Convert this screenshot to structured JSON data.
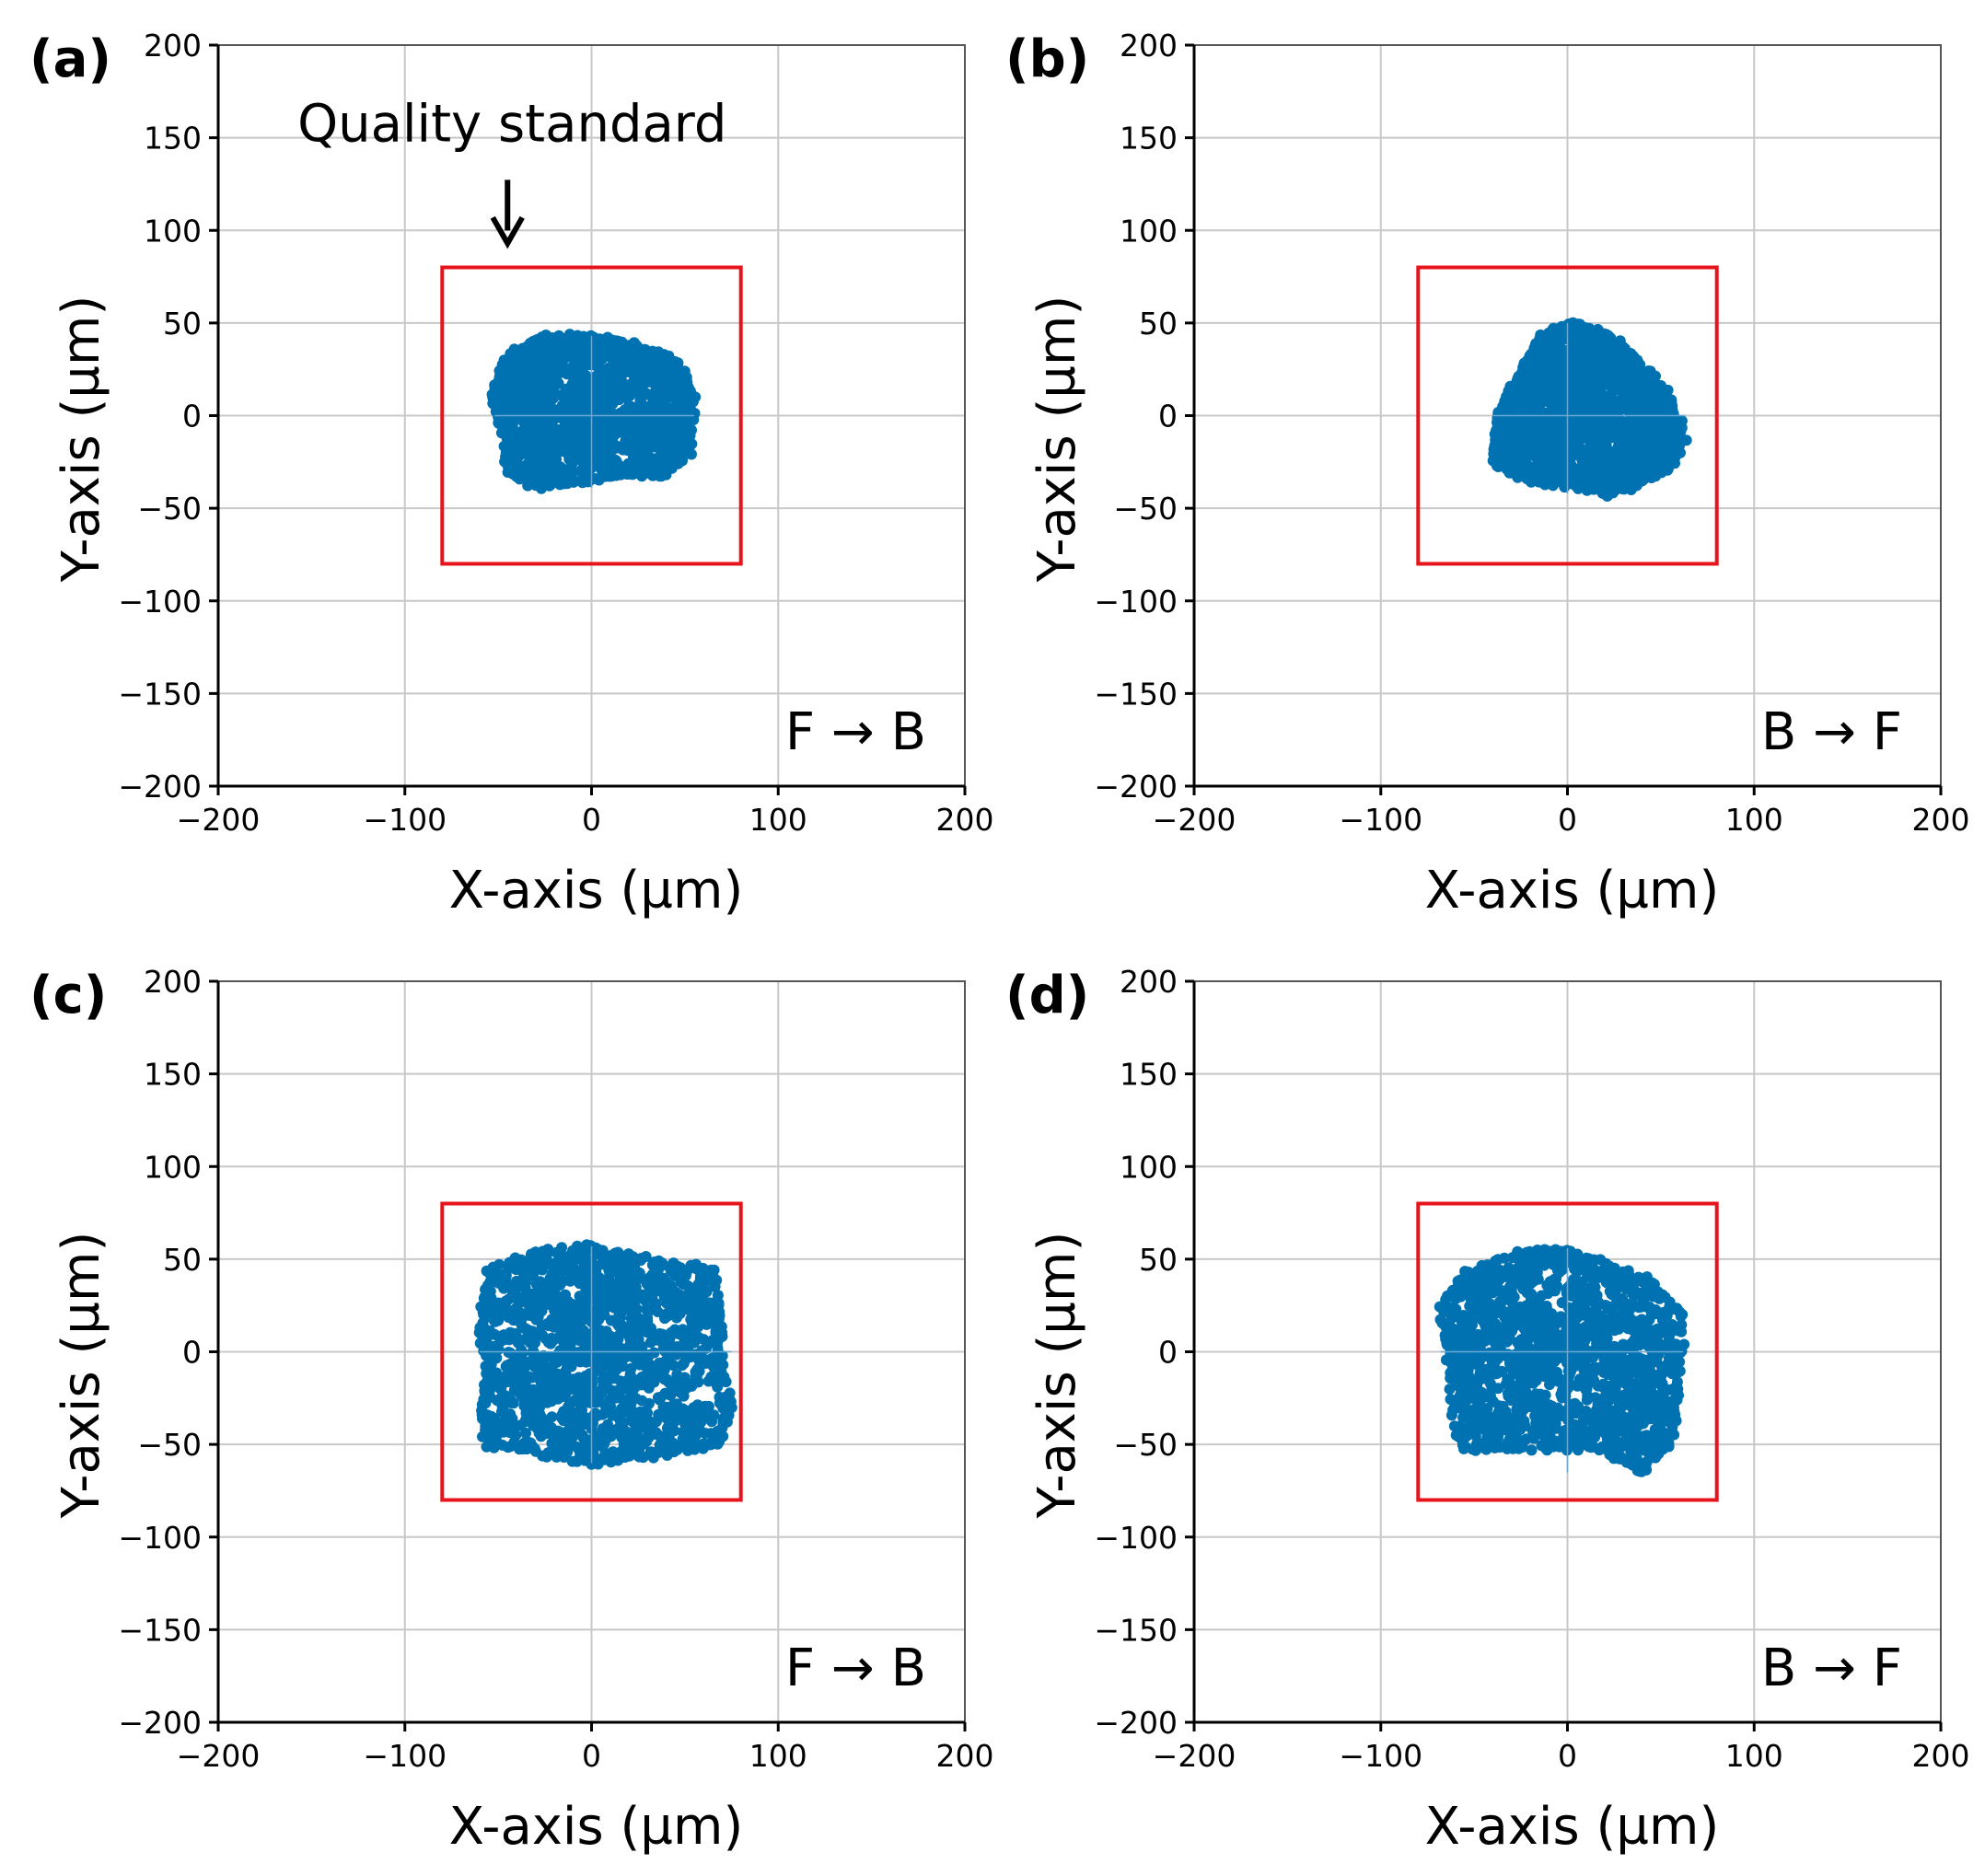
{
  "colors": {
    "points": "#0072b2",
    "quality_box": "#e8141c",
    "grid": "#c8c8c8",
    "axes": "#000000"
  },
  "shared_text": {
    "xlabel": "X-axis (µm)",
    "ylabel": "Y-axis (µm)"
  },
  "chart_data": [
    {
      "type": "scatter",
      "panel_label": "(a)",
      "direction_label": "F → B",
      "xlabel": "X-axis (µm)",
      "ylabel": "Y-axis (µm)",
      "xlim": [
        -200,
        200
      ],
      "ylim": [
        -200,
        200
      ],
      "xticks": [
        -200,
        -100,
        0,
        100,
        200
      ],
      "yticks": [
        -200,
        -150,
        -100,
        -50,
        0,
        50,
        100,
        150,
        200
      ],
      "tick_labels_x": [
        "−200",
        "−100",
        "0",
        "100",
        "200"
      ],
      "tick_labels_y": [
        "−200",
        "−150",
        "−100",
        "−50",
        "0",
        "50",
        "100",
        "150",
        "200"
      ],
      "grid": true,
      "quality_standard_box": {
        "x": [
          -80,
          80
        ],
        "y": [
          -80,
          80
        ]
      },
      "annotation": {
        "text": "Quality standard",
        "arrow_target": [
          -45,
          95
        ]
      },
      "series": [
        {
          "outline": [
            [
              -52,
              15
            ],
            [
              -44,
              33
            ],
            [
              -28,
              42
            ],
            [
              0,
              43
            ],
            [
              25,
              38
            ],
            [
              45,
              30
            ],
            [
              55,
              10
            ],
            [
              52,
              -20
            ],
            [
              38,
              -32
            ],
            [
              15,
              -32
            ],
            [
              -5,
              -36
            ],
            [
              -30,
              -39
            ],
            [
              -45,
              -30
            ],
            [
              -46,
              -10
            ],
            [
              -52,
              5
            ]
          ]
        }
      ]
    },
    {
      "type": "scatter",
      "panel_label": "(b)",
      "direction_label": "B → F",
      "xlabel": "X-axis (µm)",
      "ylabel": "Y-axis (µm)",
      "xlim": [
        -200,
        200
      ],
      "ylim": [
        -200,
        200
      ],
      "xticks": [
        -200,
        -100,
        0,
        100,
        200
      ],
      "yticks": [
        -200,
        -150,
        -100,
        -50,
        0,
        50,
        100,
        150,
        200
      ],
      "tick_labels_x": [
        "−200",
        "−100",
        "0",
        "100",
        "200"
      ],
      "tick_labels_y": [
        "−200",
        "−150",
        "−100",
        "−50",
        "0",
        "50",
        "100",
        "150",
        "200"
      ],
      "grid": true,
      "quality_standard_box": {
        "x": [
          -80,
          80
        ],
        "y": [
          -80,
          80
        ]
      },
      "series": [
        {
          "outline": [
            [
              -40,
              -25
            ],
            [
              -38,
              0
            ],
            [
              -25,
              25
            ],
            [
              -15,
              42
            ],
            [
              0,
              50
            ],
            [
              20,
              45
            ],
            [
              38,
              30
            ],
            [
              55,
              10
            ],
            [
              63,
              -12
            ],
            [
              55,
              -28
            ],
            [
              35,
              -38
            ],
            [
              22,
              -42
            ],
            [
              5,
              -38
            ],
            [
              -18,
              -36
            ],
            [
              -30,
              -30
            ]
          ]
        }
      ]
    },
    {
      "type": "scatter",
      "panel_label": "(c)",
      "direction_label": "F → B",
      "xlabel": "X-axis (µm)",
      "ylabel": "Y-axis (µm)",
      "xlim": [
        -200,
        200
      ],
      "ylim": [
        -200,
        200
      ],
      "xticks": [
        -200,
        -100,
        0,
        100,
        200
      ],
      "yticks": [
        -200,
        -150,
        -100,
        -50,
        0,
        50,
        100,
        150,
        200
      ],
      "tick_labels_x": [
        "−200",
        "−100",
        "0",
        "100",
        "200"
      ],
      "tick_labels_y": [
        "−200",
        "−150",
        "−100",
        "−50",
        "0",
        "50",
        "100",
        "150",
        "200"
      ],
      "grid": true,
      "quality_standard_box": {
        "x": [
          -80,
          80
        ],
        "y": [
          -80,
          80
        ]
      },
      "series": [
        {
          "outline": [
            [
              -60,
              12
            ],
            [
              -55,
              45
            ],
            [
              -30,
              53
            ],
            [
              0,
              57
            ],
            [
              30,
              50
            ],
            [
              65,
              45
            ],
            [
              70,
              15
            ],
            [
              68,
              0
            ],
            [
              75,
              -28
            ],
            [
              68,
              -50
            ],
            [
              40,
              -55
            ],
            [
              15,
              -58
            ],
            [
              0,
              -60
            ],
            [
              -30,
              -54
            ],
            [
              -57,
              -50
            ],
            [
              -58,
              -25
            ],
            [
              -55,
              -5
            ]
          ]
        }
      ]
    },
    {
      "type": "scatter",
      "panel_label": "(d)",
      "direction_label": "B → F",
      "xlabel": "X-axis (µm)",
      "ylabel": "Y-axis (µm)",
      "xlim": [
        -200,
        200
      ],
      "ylim": [
        -200,
        200
      ],
      "xticks": [
        -200,
        -100,
        0,
        100,
        200
      ],
      "yticks": [
        -200,
        -150,
        -100,
        -50,
        0,
        50,
        100,
        150,
        200
      ],
      "tick_labels_x": [
        "−200",
        "−100",
        "0",
        "100",
        "200"
      ],
      "tick_labels_y": [
        "−200",
        "−150",
        "−100",
        "−50",
        "0",
        "50",
        "100",
        "150",
        "200"
      ],
      "grid": true,
      "quality_standard_box": {
        "x": [
          -80,
          80
        ],
        "y": [
          -80,
          80
        ]
      },
      "series": [
        {
          "outline": [
            [
              -68,
              25
            ],
            [
              -55,
              42
            ],
            [
              -30,
              52
            ],
            [
              -10,
              56
            ],
            [
              15,
              50
            ],
            [
              45,
              38
            ],
            [
              62,
              20
            ],
            [
              60,
              -20
            ],
            [
              55,
              -48
            ],
            [
              40,
              -65
            ],
            [
              28,
              -58
            ],
            [
              20,
              -52
            ],
            [
              0,
              -52
            ],
            [
              -30,
              -52
            ],
            [
              -55,
              -53
            ],
            [
              -60,
              -40
            ],
            [
              -64,
              0
            ]
          ]
        }
      ]
    }
  ]
}
